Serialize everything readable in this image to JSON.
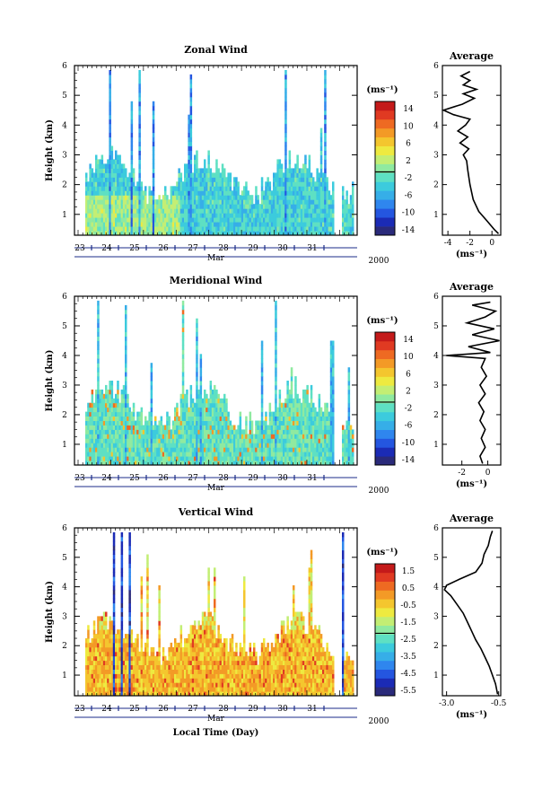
{
  "chart_data": [
    {
      "type": "heatmap",
      "title": "Zonal Wind",
      "ylabel": "Height (km)",
      "yticks": [
        "1",
        "2",
        "3",
        "4",
        "5",
        "6"
      ],
      "ylim": [
        0.3,
        6.0
      ],
      "days": [
        "23",
        "24",
        "25",
        "26",
        "27",
        "28",
        "29",
        "30",
        "31"
      ],
      "month": "Mar",
      "year": "2000",
      "colorbar": {
        "unit": "(ms⁻¹)",
        "labels": [
          "14",
          "10",
          "6",
          "2",
          "-2",
          "-6",
          "-10",
          "-14"
        ],
        "range": [
          -14,
          14
        ],
        "colors": [
          "#2a2a7a",
          "#1b2bb5",
          "#2456e0",
          "#2f86ee",
          "#36aee8",
          "#3ccbdd",
          "#5ee0c3",
          "#8feaa0",
          "#c3ee74",
          "#eeea40",
          "#f4c62e",
          "#f39a26",
          "#ee6a22",
          "#e03a22",
          "#c41a1a"
        ]
      },
      "avg": {
        "title": "Average",
        "xlabel": "(ms⁻¹)",
        "xticks": [
          "-4",
          "-2",
          "0"
        ],
        "xlim": [
          -4.5,
          0.8
        ],
        "profile": [
          [
            0.35,
            0.6
          ],
          [
            0.5,
            0.2
          ],
          [
            0.8,
            -0.5
          ],
          [
            1.1,
            -1.2
          ],
          [
            1.5,
            -1.7
          ],
          [
            2.0,
            -2.0
          ],
          [
            2.5,
            -2.2
          ],
          [
            2.8,
            -2.3
          ],
          [
            3.0,
            -2.6
          ],
          [
            3.2,
            -2.1
          ],
          [
            3.4,
            -2.9
          ],
          [
            3.6,
            -2.2
          ],
          [
            3.8,
            -3.1
          ],
          [
            4.0,
            -2.4
          ],
          [
            4.2,
            -2.0
          ],
          [
            4.35,
            -3.5
          ],
          [
            4.5,
            -4.4
          ],
          [
            4.7,
            -2.7
          ],
          [
            4.9,
            -1.6
          ],
          [
            5.05,
            -2.6
          ],
          [
            5.2,
            -1.4
          ],
          [
            5.35,
            -2.6
          ],
          [
            5.5,
            -2.0
          ],
          [
            5.65,
            -2.8
          ],
          [
            5.8,
            -2.0
          ]
        ]
      }
    },
    {
      "type": "heatmap",
      "title": "Meridional Wind",
      "ylabel": "Height (km)",
      "yticks": [
        "1",
        "2",
        "3",
        "4",
        "5",
        "6"
      ],
      "ylim": [
        0.3,
        6.0
      ],
      "days": [
        "23",
        "24",
        "25",
        "26",
        "27",
        "28",
        "29",
        "30",
        "31"
      ],
      "month": "Mar",
      "year": "2000",
      "colorbar": {
        "unit": "(ms⁻¹)",
        "labels": [
          "14",
          "10",
          "6",
          "2",
          "-2",
          "-6",
          "-10",
          "-14"
        ],
        "range": [
          -14,
          14
        ],
        "colors": [
          "#2a2a7a",
          "#1b2bb5",
          "#2456e0",
          "#2f86ee",
          "#36aee8",
          "#3ccbdd",
          "#5ee0c3",
          "#8feaa0",
          "#c3ee74",
          "#eeea40",
          "#f4c62e",
          "#f39a26",
          "#ee6a22",
          "#e03a22",
          "#c41a1a"
        ]
      },
      "avg": {
        "title": "Average",
        "xlabel": "(ms⁻¹)",
        "xticks": [
          "-2",
          "0"
        ],
        "xlim": [
          -3.5,
          1.0
        ],
        "profile": [
          [
            0.35,
            -0.4
          ],
          [
            0.6,
            -0.6
          ],
          [
            0.9,
            -0.2
          ],
          [
            1.2,
            -0.5
          ],
          [
            1.5,
            -0.2
          ],
          [
            1.8,
            -0.6
          ],
          [
            2.1,
            -0.3
          ],
          [
            2.4,
            -0.7
          ],
          [
            2.7,
            -0.2
          ],
          [
            3.0,
            -0.6
          ],
          [
            3.3,
            -0.1
          ],
          [
            3.6,
            -0.5
          ],
          [
            3.9,
            -0.2
          ],
          [
            4.0,
            -3.2
          ],
          [
            4.1,
            0.2
          ],
          [
            4.3,
            -1.5
          ],
          [
            4.5,
            0.9
          ],
          [
            4.7,
            -1.2
          ],
          [
            4.9,
            0.5
          ],
          [
            5.1,
            -1.6
          ],
          [
            5.3,
            -0.2
          ],
          [
            5.5,
            0.6
          ],
          [
            5.7,
            -1.2
          ],
          [
            5.8,
            0.2
          ]
        ]
      }
    },
    {
      "type": "heatmap",
      "title": "Vertical Wind",
      "ylabel": "Height (km)",
      "xlabel": "Local Time (Day)",
      "yticks": [
        "1",
        "2",
        "3",
        "4",
        "5",
        "6"
      ],
      "ylim": [
        0.3,
        6.0
      ],
      "days": [
        "23",
        "24",
        "25",
        "26",
        "27",
        "28",
        "29",
        "30",
        "31"
      ],
      "month": "Mar",
      "year": "2000",
      "colorbar": {
        "unit": "(ms⁻¹)",
        "labels": [
          "1.5",
          "0.5",
          "-0.5",
          "-1.5",
          "-2.5",
          "-3.5",
          "-4.5",
          "-5.5"
        ],
        "range": [
          -6,
          2
        ],
        "colors": [
          "#2a2a7a",
          "#1b2bb5",
          "#2456e0",
          "#2f86ee",
          "#36aee8",
          "#3ccbdd",
          "#5ee0c3",
          "#8feaa0",
          "#c3ee74",
          "#eeea40",
          "#f4c62e",
          "#f39a26",
          "#ee6a22",
          "#e03a22",
          "#c41a1a"
        ]
      },
      "avg": {
        "title": "Average",
        "xlabel": "(ms⁻¹)",
        "xticks": [
          "-3.0",
          "-0.5"
        ],
        "xlim": [
          -3.2,
          -0.4
        ],
        "profile": [
          [
            0.35,
            -0.55
          ],
          [
            0.7,
            -0.65
          ],
          [
            1.0,
            -0.8
          ],
          [
            1.3,
            -0.95
          ],
          [
            1.6,
            -1.15
          ],
          [
            1.9,
            -1.35
          ],
          [
            2.2,
            -1.6
          ],
          [
            2.5,
            -1.8
          ],
          [
            2.8,
            -2.0
          ],
          [
            3.1,
            -2.2
          ],
          [
            3.4,
            -2.5
          ],
          [
            3.7,
            -2.8
          ],
          [
            3.9,
            -3.1
          ],
          [
            4.05,
            -3.0
          ],
          [
            4.25,
            -2.4
          ],
          [
            4.5,
            -1.6
          ],
          [
            4.8,
            -1.3
          ],
          [
            5.1,
            -1.2
          ],
          [
            5.4,
            -1.0
          ],
          [
            5.7,
            -0.9
          ],
          [
            5.9,
            -0.8
          ]
        ]
      }
    }
  ]
}
